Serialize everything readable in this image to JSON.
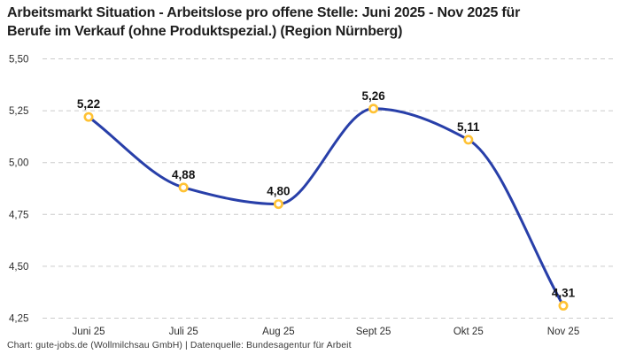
{
  "header": {
    "title_line1": "Arbeitsmarkt Situation - Arbeitslose pro offene Stelle: Juni 2025 - Nov 2025 für",
    "title_line2": "Berufe im Verkauf (ohne Produktspezial.) (Region Nürnberg)"
  },
  "footer": {
    "attribution": "Chart: gute-jobs.de (Wollmilchsau GmbH) | Datenquelle: Bundesagentur für Arbeit"
  },
  "chart_data": {
    "type": "line",
    "title": "Arbeitsmarkt Situation - Arbeitslose pro offene Stelle: Juni 2025 - Nov 2025 für Berufe im Verkauf (ohne Produktspezial.) (Region Nürnberg)",
    "categories": [
      "Juni 25",
      "Juli 25",
      "Aug 25",
      "Sept 25",
      "Okt 25",
      "Nov 25"
    ],
    "values": [
      5.22,
      4.88,
      4.8,
      5.26,
      5.11,
      4.31
    ],
    "value_labels": [
      "5,22",
      "4,88",
      "4,80",
      "5,26",
      "5,11",
      "4,31"
    ],
    "ylim": [
      4.25,
      5.5
    ],
    "yticks": [
      5.5,
      5.25,
      5.0,
      4.75,
      4.5,
      4.25
    ],
    "ytick_labels": [
      "5,50",
      "5,25",
      "5,00",
      "4,75",
      "4,50",
      "4,25"
    ],
    "xlabel": "",
    "ylabel": "",
    "legend": "none",
    "grid": "horizontal-dashed",
    "curve": "monotone",
    "colors": {
      "line": "#283fa9",
      "marker_ring": "#ffc234",
      "marker_fill": "#ffffff",
      "gridline": "#cbcbcb",
      "axis_text": "#2d2d2d",
      "point_label_text": "#141414"
    }
  }
}
